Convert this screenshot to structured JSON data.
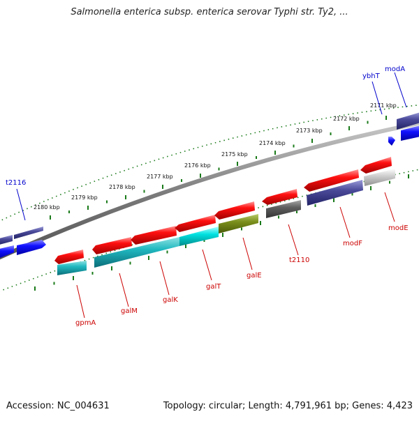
{
  "title": "Salmonella enterica subsp. enterica serovar Typhi str. Ty2, ...",
  "footer": {
    "accession": "Accession: NC_004631",
    "topology": "Topology: circular; Length: 4,791,961 bp; Genes: 4,423"
  },
  "scale_labels": [
    "2171 kbp",
    "2172 kbp",
    "2173 kbp",
    "2174 kbp",
    "2175 kbp",
    "2176 kbp",
    "2177 kbp",
    "2178 kbp",
    "2179 kbp",
    "2180 kbp"
  ],
  "gene_labels": {
    "top": [
      "modA",
      "ybhT",
      "t2116"
    ],
    "bottom": [
      "modE",
      "modF",
      "t2110",
      "galE",
      "galT",
      "galK",
      "galM",
      "gpmA"
    ]
  },
  "colors": {
    "forward_label": "#0000cc",
    "reverse_label": "#cc0000",
    "backbone": "#777777",
    "ticks": "#1a7a1a"
  }
}
